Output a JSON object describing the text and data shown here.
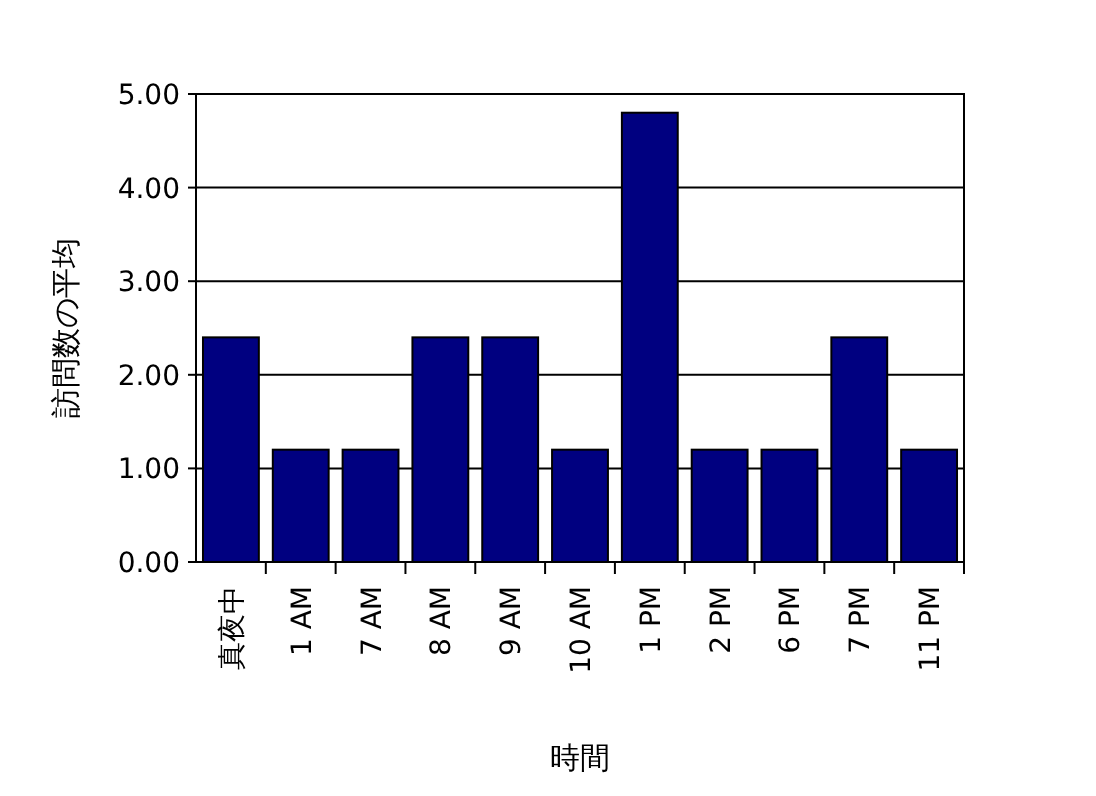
{
  "chart_data": {
    "type": "bar",
    "xlabel": "時間",
    "ylabel": "訪問数の平均",
    "categories": [
      "真夜中",
      "1 AM",
      "7 AM",
      "8 AM",
      "9 AM",
      "10 AM",
      "1 PM",
      "2 PM",
      "6 PM",
      "7 PM",
      "11 PM"
    ],
    "values": [
      2.4,
      1.2,
      1.2,
      2.4,
      2.4,
      1.2,
      4.8,
      1.2,
      1.2,
      2.4,
      1.2
    ],
    "color": "#000080",
    "ylim": [
      0,
      5
    ],
    "yticks": [
      {
        "value": 0,
        "label": "0.00"
      },
      {
        "value": 1,
        "label": "1.00"
      },
      {
        "value": 2,
        "label": "2.00"
      },
      {
        "value": 3,
        "label": "3.00"
      },
      {
        "value": 4,
        "label": "4.00"
      },
      {
        "value": 5,
        "label": "5.00"
      }
    ],
    "grid": "y"
  }
}
